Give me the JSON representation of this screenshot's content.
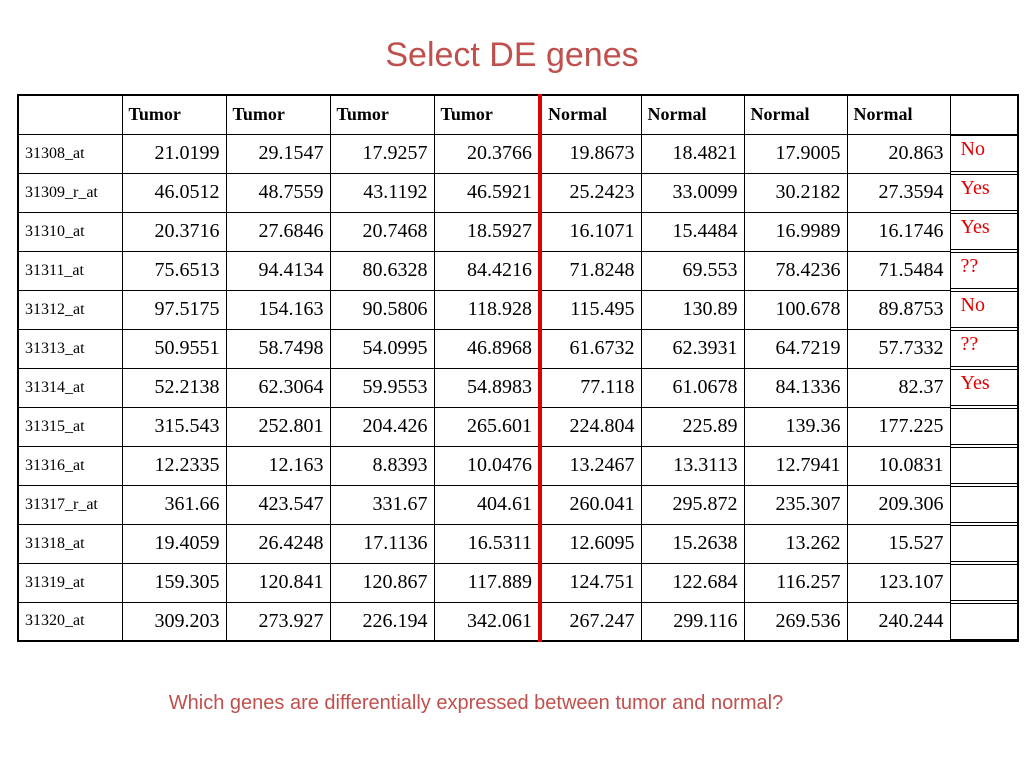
{
  "title": "Select DE genes",
  "question": "Which genes are differentially expressed between tumor and normal?",
  "colors": {
    "title": "#c0504d",
    "answer": "#e00000",
    "divider": "#e00000"
  },
  "table": {
    "headers": [
      "",
      "Tumor",
      "Tumor",
      "Tumor",
      "Tumor",
      "Normal",
      "Normal",
      "Normal",
      "Normal",
      ""
    ],
    "rows": [
      {
        "gene": "31308_at",
        "values": [
          "21.0199",
          "29.1547",
          "17.9257",
          "20.3766",
          "19.8673",
          "18.4821",
          "17.9005",
          "20.863"
        ],
        "answer": "No"
      },
      {
        "gene": "31309_r_at",
        "values": [
          "46.0512",
          "48.7559",
          "43.1192",
          "46.5921",
          "25.2423",
          "33.0099",
          "30.2182",
          "27.3594"
        ],
        "answer": "Yes"
      },
      {
        "gene": "31310_at",
        "values": [
          "20.3716",
          "27.6846",
          "20.7468",
          "18.5927",
          "16.1071",
          "15.4484",
          "16.9989",
          "16.1746"
        ],
        "answer": "Yes"
      },
      {
        "gene": "31311_at",
        "values": [
          "75.6513",
          "94.4134",
          "80.6328",
          "84.4216",
          "71.8248",
          "69.553",
          "78.4236",
          "71.5484"
        ],
        "answer": "??"
      },
      {
        "gene": "31312_at",
        "values": [
          "97.5175",
          "154.163",
          "90.5806",
          "118.928",
          "115.495",
          "130.89",
          "100.678",
          "89.8753"
        ],
        "answer": "No"
      },
      {
        "gene": "31313_at",
        "values": [
          "50.9551",
          "58.7498",
          "54.0995",
          "46.8968",
          "61.6732",
          "62.3931",
          "64.7219",
          "57.7332"
        ],
        "answer": "??"
      },
      {
        "gene": "31314_at",
        "values": [
          "52.2138",
          "62.3064",
          "59.9553",
          "54.8983",
          "77.118",
          "61.0678",
          "84.1336",
          "82.37"
        ],
        "answer": "Yes"
      },
      {
        "gene": "31315_at",
        "values": [
          "315.543",
          "252.801",
          "204.426",
          "265.601",
          "224.804",
          "225.89",
          "139.36",
          "177.225"
        ],
        "answer": ""
      },
      {
        "gene": "31316_at",
        "values": [
          "12.2335",
          "12.163",
          "8.8393",
          "10.0476",
          "13.2467",
          "13.3113",
          "12.7941",
          "10.0831"
        ],
        "answer": ""
      },
      {
        "gene": "31317_r_at",
        "values": [
          "361.66",
          "423.547",
          "331.67",
          "404.61",
          "260.041",
          "295.872",
          "235.307",
          "209.306"
        ],
        "answer": ""
      },
      {
        "gene": "31318_at",
        "values": [
          "19.4059",
          "26.4248",
          "17.1136",
          "16.5311",
          "12.6095",
          "15.2638",
          "13.262",
          "15.527"
        ],
        "answer": ""
      },
      {
        "gene": "31319_at",
        "values": [
          "159.305",
          "120.841",
          "120.867",
          "117.889",
          "124.751",
          "122.684",
          "116.257",
          "123.107"
        ],
        "answer": ""
      },
      {
        "gene": "31320_at",
        "values": [
          "309.203",
          "273.927",
          "226.194",
          "342.061",
          "267.247",
          "299.116",
          "269.536",
          "240.244"
        ],
        "answer": ""
      }
    ]
  }
}
